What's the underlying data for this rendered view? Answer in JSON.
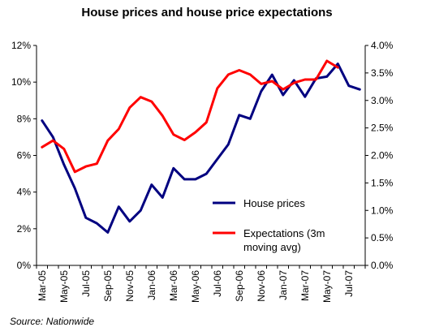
{
  "chart_data": {
    "type": "line",
    "title": "House prices and house price expectations",
    "source": "Source: Nationwide",
    "x": [
      "Mar-05",
      "Apr-05",
      "May-05",
      "Jun-05",
      "Jul-05",
      "Aug-05",
      "Sep-05",
      "Oct-05",
      "Nov-05",
      "Dec-05",
      "Jan-06",
      "Feb-06",
      "Mar-06",
      "Apr-06",
      "May-06",
      "Jun-06",
      "Jul-06",
      "Aug-06",
      "Sep-06",
      "Oct-06",
      "Nov-06",
      "Dec-06",
      "Jan-07",
      "Feb-07",
      "Mar-07",
      "Apr-07",
      "May-07",
      "Jun-07",
      "Jul-07",
      "Aug-07"
    ],
    "x_tick_labels": [
      "Mar-05",
      "May-05",
      "Jul-05",
      "Sep-05",
      "Nov-05",
      "Jan-06",
      "Mar-06",
      "May-06",
      "Jul-06",
      "Sep-06",
      "Nov-06",
      "Jan-07",
      "Mar-07",
      "May-07",
      "Jul-07"
    ],
    "y_left": {
      "ylim": [
        0,
        12
      ],
      "ticks": [
        "0%",
        "2%",
        "4%",
        "6%",
        "8%",
        "10%",
        "12%"
      ]
    },
    "y_right": {
      "ylim": [
        0,
        4
      ],
      "ticks": [
        "0.0%",
        "0.5%",
        "1.0%",
        "1.5%",
        "2.0%",
        "2.5%",
        "3.0%",
        "3.5%",
        "4.0%"
      ]
    },
    "grid": false,
    "legend_position": "center-right",
    "series": [
      {
        "name": "House prices",
        "axis": "left",
        "color": "#000080",
        "values": [
          7.9,
          7.0,
          5.5,
          4.2,
          2.6,
          2.3,
          1.8,
          3.2,
          2.4,
          3.0,
          4.4,
          3.7,
          5.3,
          4.7,
          4.7,
          5.0,
          5.8,
          6.6,
          8.2,
          8.0,
          9.5,
          10.4,
          9.3,
          10.1,
          9.2,
          10.2,
          10.3,
          11.0,
          9.8,
          9.6
        ]
      },
      {
        "name": "Expectations (3m moving avg)",
        "legend_lines": [
          "Expectations (3m",
          "moving avg)"
        ],
        "axis": "right",
        "color": "#ff0000",
        "values": [
          2.15,
          2.27,
          2.12,
          1.7,
          1.8,
          1.85,
          2.27,
          2.48,
          2.87,
          3.06,
          2.98,
          2.72,
          2.38,
          2.28,
          2.42,
          2.6,
          3.22,
          3.47,
          3.55,
          3.47,
          3.3,
          3.35,
          3.2,
          3.32,
          3.38,
          3.38,
          3.72,
          3.6,
          null,
          null
        ]
      }
    ]
  }
}
